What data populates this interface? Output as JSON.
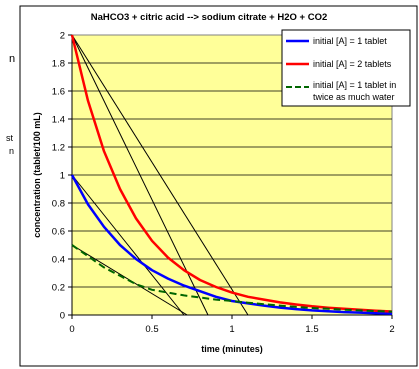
{
  "cut_off_text": {
    "line1": "n",
    "line2": "st",
    "line3": "n"
  },
  "chart_data": {
    "type": "line",
    "title": "NaHCO3 + citric acid --> sodium citrate + H2O + CO2",
    "xlabel": "time (minutes)",
    "ylabel": "concentration (tablet/100 mL)",
    "xlim": [
      0,
      2
    ],
    "ylim": [
      0,
      2
    ],
    "xticks": [
      0,
      0.5,
      1,
      1.5,
      2
    ],
    "xtick_labels": [
      "0",
      "0.5",
      "1",
      "1.5",
      "2"
    ],
    "yticks": [
      0,
      0.2,
      0.4,
      0.6,
      0.8,
      1,
      1.2,
      1.4,
      1.6,
      1.8,
      2
    ],
    "ytick_labels": [
      "0",
      "0.2",
      "0.4",
      "0.6",
      "0.8",
      "1",
      "1.2",
      "1.4",
      "1.6",
      "1.8",
      "2"
    ],
    "grid": true,
    "plot_background": "#ffff99",
    "legend_position": "top-right",
    "series": [
      {
        "name": "initial [A] = 1 tablet",
        "color": "#0000ff",
        "style": "solid",
        "x": [
          0,
          0.1,
          0.2,
          0.3,
          0.4,
          0.5,
          0.6,
          0.7,
          0.8,
          0.9,
          1.0,
          1.1,
          1.2,
          1.3,
          1.4,
          1.5,
          1.6,
          1.7,
          1.8,
          1.9,
          2.0
        ],
        "values": [
          1.0,
          0.79,
          0.63,
          0.5,
          0.4,
          0.32,
          0.26,
          0.21,
          0.17,
          0.13,
          0.1,
          0.083,
          0.067,
          0.053,
          0.042,
          0.033,
          0.027,
          0.021,
          0.017,
          0.013,
          0.01
        ]
      },
      {
        "name": "initial [A] = 2 tablets",
        "color": "#ff0000",
        "style": "solid",
        "x": [
          0,
          0.1,
          0.2,
          0.3,
          0.4,
          0.5,
          0.6,
          0.7,
          0.8,
          0.9,
          1.0,
          1.1,
          1.2,
          1.3,
          1.4,
          1.5,
          1.6,
          1.7,
          1.8,
          1.9,
          2.0
        ],
        "values": [
          2.0,
          1.53,
          1.17,
          0.9,
          0.69,
          0.53,
          0.41,
          0.32,
          0.25,
          0.2,
          0.16,
          0.13,
          0.11,
          0.09,
          0.075,
          0.062,
          0.052,
          0.044,
          0.037,
          0.03,
          0.025
        ]
      },
      {
        "name": "initial [A] = 1 tablet in twice as much water",
        "legend_lines": [
          "initial [A] = 1 tablet in",
          "twice as much water"
        ],
        "color": "#006600",
        "style": "dashed",
        "x": [
          0,
          0.1,
          0.2,
          0.3,
          0.4,
          0.5,
          0.6,
          0.7,
          0.8,
          0.9,
          1.0,
          1.1,
          1.2,
          1.3,
          1.4,
          1.5,
          1.6,
          1.7,
          1.8,
          1.9,
          2.0
        ],
        "values": [
          0.5,
          0.42,
          0.34,
          0.28,
          0.22,
          0.18,
          0.16,
          0.14,
          0.125,
          0.11,
          0.1,
          0.088,
          0.077,
          0.067,
          0.058,
          0.05,
          0.044,
          0.038,
          0.033,
          0.028,
          0.024
        ]
      }
    ],
    "tangent_lines": [
      {
        "x": [
          0,
          1.1
        ],
        "values": [
          2.0,
          0
        ]
      },
      {
        "x": [
          0,
          0.85
        ],
        "values": [
          2.0,
          0
        ]
      },
      {
        "x": [
          0,
          0.7
        ],
        "values": [
          1.0,
          0
        ]
      },
      {
        "x": [
          0,
          0.72
        ],
        "values": [
          0.5,
          0
        ]
      }
    ]
  }
}
